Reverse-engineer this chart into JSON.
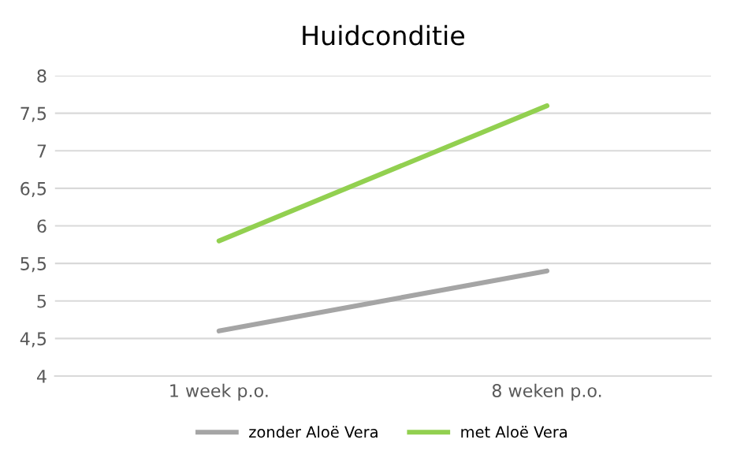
{
  "chart_data": {
    "type": "line",
    "title": "Huidconditie",
    "categories": [
      "1 week p.o.",
      "8 weken p.o."
    ],
    "series": [
      {
        "name": "zonder Aloë Vera",
        "color": "#a5a5a5",
        "values": [
          4.6,
          5.4
        ]
      },
      {
        "name": "met Aloë Vera",
        "color": "#92d050",
        "values": [
          5.8,
          7.6
        ]
      }
    ],
    "ylim": [
      4,
      8
    ],
    "yticks": [
      4,
      {
        "value": 4.5,
        "label": "4,5"
      },
      5,
      {
        "value": 5.5,
        "label": "5,5"
      },
      6,
      {
        "value": 6.5,
        "label": "6,5"
      },
      7,
      {
        "value": 7.5,
        "label": "7,5"
      },
      8
    ],
    "grid": "y",
    "legend": "bottom",
    "marker": "none",
    "line_style": "solid"
  }
}
